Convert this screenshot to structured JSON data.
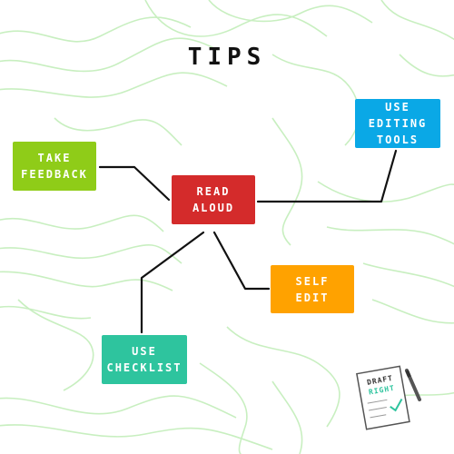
{
  "title": "TIPS",
  "colors": {
    "background": "#ffffff",
    "contour": "#c8efc0",
    "connector": "#111111",
    "take_feedback": "#8fcc18",
    "read_aloud": "#d42b2b",
    "use_editing_tools": "#0aa8e6",
    "self_edit": "#ffa200",
    "use_checklist": "#2ec49e"
  },
  "nodes": {
    "take_feedback": "TAKE\nFEEDBACK",
    "read_aloud": "READ\nALOUD",
    "use_editing_tools": "USE\nEDITING\nTOOLS",
    "self_edit": "SELF\nEDIT",
    "use_checklist": "USE\nCHECKLIST"
  },
  "logo": {
    "line1": "DRAFT",
    "line2": "RIGHT"
  }
}
